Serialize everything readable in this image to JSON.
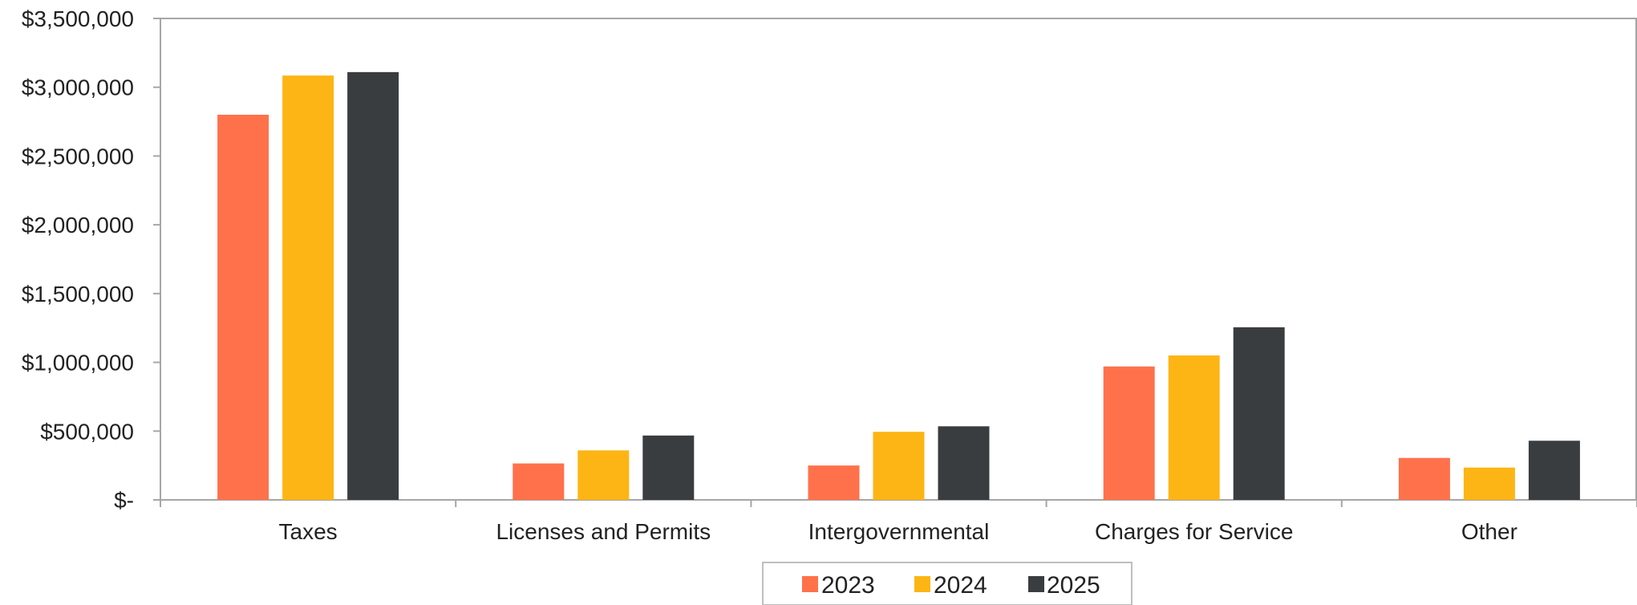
{
  "chart_data": {
    "type": "bar",
    "title": "",
    "xlabel": "",
    "ylabel": "",
    "categories": [
      "Taxes",
      "Licenses and Permits",
      "Intergovernmental",
      "Charges for Service",
      "Other"
    ],
    "series": [
      {
        "name": "2023",
        "color": "#FF714B",
        "values": [
          2800000,
          265000,
          250000,
          970000,
          305000
        ]
      },
      {
        "name": "2024",
        "color": "#FDB515",
        "values": [
          3085000,
          360000,
          495000,
          1050000,
          235000
        ]
      },
      {
        "name": "2025",
        "color": "#3A3D40",
        "values": [
          3110000,
          468000,
          535000,
          1255000,
          430000
        ]
      }
    ],
    "ylim": [
      0,
      3500000
    ],
    "yticks": [
      0,
      500000,
      1000000,
      1500000,
      2000000,
      2500000,
      3000000,
      3500000
    ],
    "ytick_labels": [
      "$-",
      "$500,000",
      "$1,000,000",
      "$1,500,000",
      "$2,000,000",
      "$2,500,000",
      "$3,000,000",
      "$3,500,000"
    ],
    "grid": false,
    "legend_position": "bottom"
  }
}
